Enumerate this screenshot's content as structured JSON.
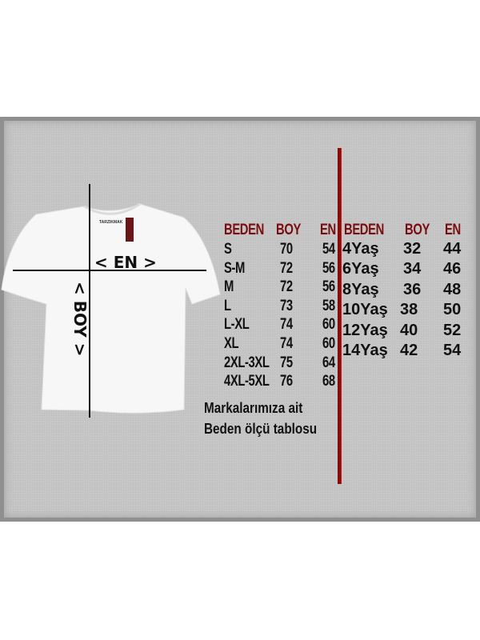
{
  "diagram": {
    "width_label": "< EN >",
    "length_label": "< BOY >",
    "brand_tag": "TARZIKMAK"
  },
  "adult_table": {
    "headers": [
      "BEDEN",
      "BOY",
      "EN"
    ],
    "rows": [
      [
        "S",
        "70",
        "54"
      ],
      [
        "S-M",
        "72",
        "56"
      ],
      [
        "M",
        "72",
        "56"
      ],
      [
        "L",
        "73",
        "58"
      ],
      [
        "L-XL",
        "74",
        "60"
      ],
      [
        "XL",
        "74",
        "60"
      ],
      [
        "2XL-3XL",
        "75",
        "64"
      ],
      [
        "4XL-5XL",
        "76",
        "68"
      ]
    ]
  },
  "kids_table": {
    "headers": [
      "BEDEN",
      "BOY",
      "EN"
    ],
    "rows": [
      [
        "4Yaş",
        "32",
        "44"
      ],
      [
        "6Yaş",
        "34",
        "46"
      ],
      [
        "8Yaş",
        "36",
        "48"
      ],
      [
        "10Yaş",
        "38",
        "50"
      ],
      [
        "12Yaş",
        "40",
        "52"
      ],
      [
        "14Yaş",
        "42",
        "54"
      ]
    ]
  },
  "caption": [
    "Markalarımıza ait",
    "Beden ölçü tablosu"
  ],
  "colors": {
    "header": "#7a0d10",
    "divider": "#8b0a0a",
    "panel": "#c6c6c6"
  }
}
